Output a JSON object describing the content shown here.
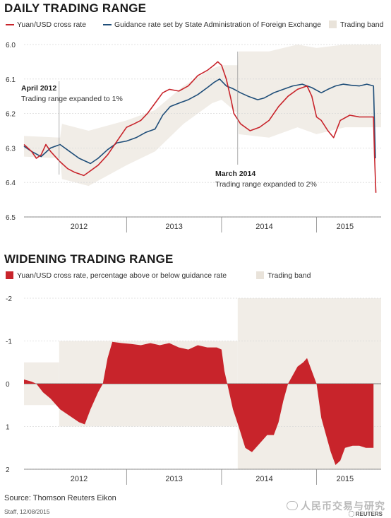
{
  "source": "Source: Thomson Reuters Eikon",
  "staff": "Staff, 12/08/2015",
  "watermark": "人民币交易与研究",
  "reuters": "REUTERS",
  "colors": {
    "red": "#c8242b",
    "blue": "#1f4e79",
    "band": "#f1ede7",
    "grid": "#d9d9d9",
    "axis": "#666666"
  },
  "chart_data": [
    {
      "type": "line",
      "title": "DAILY TRADING RANGE",
      "ylim": [
        6.5,
        6.0
      ],
      "y_inverted": true,
      "yticks": [
        "6.0",
        "6.1",
        "6.2",
        "6.3",
        "6.4",
        "6.5"
      ],
      "ytick_values": [
        6.0,
        6.1,
        6.2,
        6.3,
        6.4,
        6.5
      ],
      "xlim": [
        2011.92,
        2015.68
      ],
      "xticks": [
        "2012",
        "2013",
        "2014",
        "2015"
      ],
      "xtick_values": [
        2012.5,
        2013.5,
        2014.45,
        2015.3
      ],
      "year_dividers": [
        2013.0,
        2014.0,
        2015.0
      ],
      "grid": true,
      "legend": {
        "red": "Yuan/USD cross rate",
        "blue": "Guidance rate set by State Administration of Foreign Exchange",
        "band": "Trading band"
      },
      "annotations": [
        {
          "title": "April 2012",
          "text": "Trading range expanded to 1%",
          "x": 2012.29
        },
        {
          "title": "March 2014",
          "text": "Trading range expanded to 2%",
          "x": 2014.17
        }
      ],
      "series": [
        {
          "name": "Guidance rate set by State Administration of Foreign Exchange",
          "color": "blue",
          "points": [
            [
              2011.92,
              6.295
            ],
            [
              2012.0,
              6.31
            ],
            [
              2012.1,
              6.325
            ],
            [
              2012.2,
              6.3
            ],
            [
              2012.3,
              6.29
            ],
            [
              2012.4,
              6.31
            ],
            [
              2012.5,
              6.33
            ],
            [
              2012.58,
              6.34
            ],
            [
              2012.62,
              6.345
            ],
            [
              2012.7,
              6.33
            ],
            [
              2012.8,
              6.305
            ],
            [
              2012.9,
              6.285
            ],
            [
              2013.0,
              6.28
            ],
            [
              2013.1,
              6.27
            ],
            [
              2013.2,
              6.255
            ],
            [
              2013.3,
              6.245
            ],
            [
              2013.38,
              6.205
            ],
            [
              2013.46,
              6.18
            ],
            [
              2013.55,
              6.17
            ],
            [
              2013.65,
              6.16
            ],
            [
              2013.75,
              6.145
            ],
            [
              2013.85,
              6.125
            ],
            [
              2013.92,
              6.11
            ],
            [
              2013.98,
              6.1
            ],
            [
              2014.05,
              6.12
            ],
            [
              2014.12,
              6.128
            ],
            [
              2014.2,
              6.14
            ],
            [
              2014.28,
              6.15
            ],
            [
              2014.38,
              6.16
            ],
            [
              2014.45,
              6.155
            ],
            [
              2014.55,
              6.14
            ],
            [
              2014.65,
              6.13
            ],
            [
              2014.75,
              6.12
            ],
            [
              2014.85,
              6.115
            ],
            [
              2014.95,
              6.125
            ],
            [
              2015.05,
              6.14
            ],
            [
              2015.12,
              6.13
            ],
            [
              2015.2,
              6.12
            ],
            [
              2015.28,
              6.115
            ],
            [
              2015.36,
              6.118
            ],
            [
              2015.45,
              6.12
            ],
            [
              2015.53,
              6.115
            ],
            [
              2015.6,
              6.12
            ],
            [
              2015.61,
              6.23
            ],
            [
              2015.62,
              6.33
            ]
          ]
        },
        {
          "name": "Yuan/USD cross rate",
          "color": "red",
          "points": [
            [
              2011.92,
              6.29
            ],
            [
              2012.0,
              6.31
            ],
            [
              2012.05,
              6.33
            ],
            [
              2012.1,
              6.32
            ],
            [
              2012.15,
              6.29
            ],
            [
              2012.2,
              6.31
            ],
            [
              2012.3,
              6.34
            ],
            [
              2012.38,
              6.36
            ],
            [
              2012.45,
              6.37
            ],
            [
              2012.55,
              6.38
            ],
            [
              2012.6,
              6.37
            ],
            [
              2012.7,
              6.35
            ],
            [
              2012.8,
              6.32
            ],
            [
              2012.9,
              6.28
            ],
            [
              2013.0,
              6.24
            ],
            [
              2013.08,
              6.23
            ],
            [
              2013.15,
              6.22
            ],
            [
              2013.22,
              6.2
            ],
            [
              2013.3,
              6.17
            ],
            [
              2013.38,
              6.14
            ],
            [
              2013.45,
              6.13
            ],
            [
              2013.55,
              6.135
            ],
            [
              2013.65,
              6.12
            ],
            [
              2013.75,
              6.09
            ],
            [
              2013.85,
              6.075
            ],
            [
              2013.92,
              6.06
            ],
            [
              2013.96,
              6.05
            ],
            [
              2014.0,
              6.06
            ],
            [
              2014.05,
              6.1
            ],
            [
              2014.1,
              6.16
            ],
            [
              2014.13,
              6.2
            ],
            [
              2014.2,
              6.23
            ],
            [
              2014.3,
              6.25
            ],
            [
              2014.4,
              6.24
            ],
            [
              2014.5,
              6.22
            ],
            [
              2014.6,
              6.18
            ],
            [
              2014.7,
              6.15
            ],
            [
              2014.8,
              6.13
            ],
            [
              2014.9,
              6.12
            ],
            [
              2014.95,
              6.15
            ],
            [
              2015.0,
              6.21
            ],
            [
              2015.05,
              6.22
            ],
            [
              2015.12,
              6.25
            ],
            [
              2015.18,
              6.27
            ],
            [
              2015.25,
              6.22
            ],
            [
              2015.35,
              6.205
            ],
            [
              2015.45,
              6.21
            ],
            [
              2015.55,
              6.21
            ],
            [
              2015.6,
              6.21
            ],
            [
              2015.61,
              6.32
            ],
            [
              2015.625,
              6.43
            ]
          ]
        }
      ],
      "band": [
        [
          2011.92,
          6.265,
          6.325
        ],
        [
          2012.3,
          6.27,
          6.33
        ],
        [
          2012.32,
          6.23,
          6.39
        ],
        [
          2012.6,
          6.25,
          6.41
        ],
        [
          2013.0,
          6.22,
          6.35
        ],
        [
          2013.3,
          6.19,
          6.31
        ],
        [
          2013.6,
          6.12,
          6.23
        ],
        [
          2013.9,
          6.07,
          6.17
        ],
        [
          2014.0,
          6.06,
          6.16
        ],
        [
          2014.17,
          6.06,
          6.2
        ],
        [
          2014.18,
          6.02,
          6.26
        ],
        [
          2014.5,
          6.02,
          6.27
        ],
        [
          2014.8,
          6.0,
          6.24
        ],
        [
          2015.0,
          6.01,
          6.26
        ],
        [
          2015.3,
          6.0,
          6.24
        ],
        [
          2015.6,
          6.0,
          6.24
        ],
        [
          2015.68,
          6.0,
          6.24
        ]
      ]
    },
    {
      "type": "area",
      "title": "WIDENING TRADING RANGE",
      "ylim": [
        2,
        -2
      ],
      "y_inverted": true,
      "yticks": [
        "-2",
        "-1",
        "0",
        "1",
        "2"
      ],
      "ytick_values": [
        -2,
        -1,
        0,
        1,
        2
      ],
      "xlim": [
        2011.92,
        2015.68
      ],
      "xticks": [
        "2012",
        "2013",
        "2014",
        "2015"
      ],
      "xtick_values": [
        2012.5,
        2013.5,
        2014.45,
        2015.3
      ],
      "year_dividers": [
        2013.0,
        2014.0,
        2015.0
      ],
      "grid": true,
      "legend": {
        "red": "Yuan/USD cross rate, percentage above or below guidance rate",
        "band": "Trading band"
      },
      "band_steps": [
        [
          2011.92,
          0.5
        ],
        [
          2012.29,
          1.0
        ],
        [
          2014.17,
          2.0
        ],
        [
          2015.68,
          2.0
        ]
      ],
      "series": [
        {
          "name": "Yuan/USD cross rate, percentage above or below guidance rate",
          "color": "red",
          "points": [
            [
              2011.92,
              -0.1
            ],
            [
              2012.0,
              -0.05
            ],
            [
              2012.05,
              0.0
            ],
            [
              2012.12,
              0.2
            ],
            [
              2012.2,
              0.35
            ],
            [
              2012.3,
              0.6
            ],
            [
              2012.4,
              0.75
            ],
            [
              2012.5,
              0.9
            ],
            [
              2012.56,
              0.95
            ],
            [
              2012.62,
              0.6
            ],
            [
              2012.7,
              0.2
            ],
            [
              2012.75,
              0.0
            ],
            [
              2012.8,
              -0.6
            ],
            [
              2012.85,
              -0.98
            ],
            [
              2012.95,
              -0.95
            ],
            [
              2013.05,
              -0.93
            ],
            [
              2013.15,
              -0.9
            ],
            [
              2013.25,
              -0.95
            ],
            [
              2013.35,
              -0.9
            ],
            [
              2013.45,
              -0.95
            ],
            [
              2013.55,
              -0.85
            ],
            [
              2013.65,
              -0.8
            ],
            [
              2013.75,
              -0.9
            ],
            [
              2013.85,
              -0.85
            ],
            [
              2013.95,
              -0.85
            ],
            [
              2014.0,
              -0.8
            ],
            [
              2014.03,
              -0.3
            ],
            [
              2014.06,
              0.0
            ],
            [
              2014.12,
              0.6
            ],
            [
              2014.18,
              1.0
            ],
            [
              2014.25,
              1.5
            ],
            [
              2014.32,
              1.6
            ],
            [
              2014.4,
              1.4
            ],
            [
              2014.48,
              1.2
            ],
            [
              2014.55,
              1.2
            ],
            [
              2014.6,
              0.9
            ],
            [
              2014.65,
              0.4
            ],
            [
              2014.7,
              0.0
            ],
            [
              2014.75,
              -0.2
            ],
            [
              2014.8,
              -0.4
            ],
            [
              2014.86,
              -0.5
            ],
            [
              2014.9,
              -0.6
            ],
            [
              2014.95,
              -0.3
            ],
            [
              2015.0,
              0.0
            ],
            [
              2015.05,
              0.8
            ],
            [
              2015.1,
              1.2
            ],
            [
              2015.15,
              1.6
            ],
            [
              2015.2,
              1.9
            ],
            [
              2015.25,
              1.8
            ],
            [
              2015.3,
              1.5
            ],
            [
              2015.38,
              1.45
            ],
            [
              2015.45,
              1.45
            ],
            [
              2015.52,
              1.5
            ],
            [
              2015.6,
              1.5
            ]
          ]
        }
      ]
    }
  ]
}
